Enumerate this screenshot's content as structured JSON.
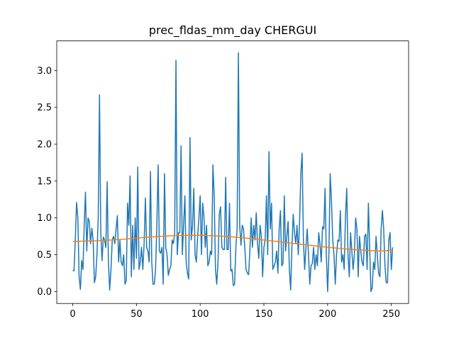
{
  "chart_data": {
    "type": "line",
    "title": "prec_fldas_mm_day CHERGUI",
    "xlim": [
      -12.55,
      263.55
    ],
    "xticks": [
      0,
      50,
      100,
      150,
      200,
      250
    ],
    "ylim": [
      -0.162,
      3.402
    ],
    "yticks": [
      {
        "value": 0,
        "label": "0.0"
      },
      0.5,
      {
        "value": 1,
        "label": "1.0"
      },
      1.5,
      {
        "value": 2,
        "label": "2.0"
      },
      2.5,
      {
        "value": 3,
        "label": "3.0"
      }
    ],
    "series": [
      {
        "color": "#1f77b4",
        "x": [
          0,
          1,
          2,
          3,
          4,
          5,
          6,
          7,
          8,
          9,
          10,
          11,
          12,
          13,
          14,
          15,
          16,
          17,
          18,
          19,
          20,
          21,
          22,
          23,
          24,
          25,
          26,
          27,
          28,
          29,
          30,
          31,
          32,
          33,
          34,
          35,
          36,
          37,
          38,
          39,
          40,
          41,
          42,
          43,
          44,
          45,
          46,
          47,
          48,
          49,
          50,
          51,
          52,
          53,
          54,
          55,
          56,
          57,
          58,
          59,
          60,
          61,
          62,
          63,
          64,
          65,
          66,
          67,
          68,
          69,
          70,
          71,
          72,
          73,
          74,
          75,
          76,
          77,
          78,
          79,
          80,
          81,
          82,
          83,
          84,
          85,
          86,
          87,
          88,
          89,
          90,
          91,
          92,
          93,
          94,
          95,
          96,
          97,
          98,
          99,
          100,
          101,
          102,
          103,
          104,
          105,
          106,
          107,
          108,
          109,
          110,
          111,
          112,
          113,
          114,
          115,
          116,
          117,
          118,
          119,
          120,
          121,
          122,
          123,
          124,
          125,
          126,
          127,
          128,
          129,
          130,
          131,
          132,
          133,
          134,
          135,
          136,
          137,
          138,
          139,
          140,
          141,
          142,
          143,
          144,
          145,
          146,
          147,
          148,
          149,
          150,
          151,
          152,
          153,
          154,
          155,
          156,
          157,
          158,
          159,
          160,
          161,
          162,
          163,
          164,
          165,
          166,
          167,
          168,
          169,
          170,
          171,
          172,
          173,
          174,
          175,
          176,
          177,
          178,
          179,
          180,
          181,
          182,
          183,
          184,
          185,
          186,
          187,
          188,
          189,
          190,
          191,
          192,
          193,
          194,
          195,
          196,
          197,
          198,
          199,
          200,
          201,
          202,
          203,
          204,
          205,
          206,
          207,
          208,
          209,
          210,
          211,
          212,
          213,
          214,
          215,
          216,
          217,
          218,
          219,
          220,
          221,
          222,
          223,
          224,
          225,
          226,
          227,
          228,
          229,
          230,
          231,
          232,
          233,
          234,
          235,
          236,
          237,
          238,
          239,
          240,
          241,
          242,
          243,
          244,
          245,
          246,
          247,
          248,
          249,
          250,
          251
        ],
        "values": [
          0.29,
          0.28,
          0.7,
          1.21,
          1.0,
          0.2,
          0.03,
          0.42,
          0.3,
          0.9,
          1.35,
          0.55,
          1.0,
          0.95,
          0.65,
          0.86,
          0.7,
          0.12,
          0.2,
          0.5,
          1.0,
          2.67,
          0.8,
          0.42,
          0.74,
          0.7,
          0.6,
          1.49,
          0.4,
          0.02,
          0.3,
          0.7,
          0.75,
          0.65,
          0.85,
          1.03,
          0.4,
          0.7,
          0.4,
          0.35,
          0.5,
          0.1,
          0.15,
          1.2,
          0.9,
          1.57,
          0.2,
          0.9,
          0.3,
          1.0,
          0.45,
          1.69,
          0.3,
          0.4,
          0.6,
          0.3,
          0.65,
          1.27,
          0.6,
          0.55,
          0.4,
          1.63,
          0.4,
          0.1,
          0.1,
          0.3,
          0.9,
          1.72,
          0.55,
          0.52,
          0.6,
          0.1,
          1.6,
          0.6,
          0.5,
          0.22,
          0.3,
          0.35,
          0.7,
          0.65,
          0.8,
          3.14,
          0.5,
          0.8,
          0.8,
          1.98,
          0.5,
          0.9,
          1.3,
          0.4,
          0.25,
          0.17,
          2.09,
          0.7,
          0.9,
          1.4,
          0.5,
          0.4,
          0.75,
          1.0,
          1.3,
          0.5,
          1.2,
          1.0,
          0.6,
          0.9,
          0.35,
          0.4,
          0.55,
          0.5,
          1.72,
          1.3,
          0.3,
          0.1,
          0.4,
          1.05,
          1.15,
          0.6,
          0.57,
          0.57,
          1.55,
          0.57,
          0.57,
          1.2,
          0.28,
          0.3,
          0.08,
          0.1,
          0.6,
          0.85,
          3.24,
          0.9,
          0.63,
          0.9,
          0.85,
          0.6,
          0.3,
          0.25,
          0.23,
          0.55,
          1.0,
          0.6,
          0.9,
          0.7,
          1.07,
          0.65,
          0.45,
          0.9,
          0.75,
          0.2,
          0.6,
          0.7,
          1.3,
          0.5,
          1.9,
          0.85,
          1.2,
          0.3,
          0.35,
          0.4,
          0.55,
          0.25,
          0.85,
          1.1,
          0.35,
          0.38,
          1.3,
          0.55,
          0.75,
          0.95,
          0.3,
          0.02,
          0.6,
          1.05,
          0.8,
          0.65,
          0.9,
          0.5,
          0.95,
          1.6,
          1.88,
          0.7,
          0.3,
          0.6,
          0.85,
          0.5,
          0.1,
          0.35,
          0.38,
          0.6,
          0.3,
          0.5,
          0.35,
          0.8,
          0.65,
          0.4,
          0.88,
          0.85,
          1.4,
          0.5,
          0.0,
          0.5,
          1.6,
          1.25,
          0.7,
          0.5,
          0.1,
          0.5,
          0.7,
          0.68,
          1.1,
          0.4,
          0.5,
          0.3,
          1.0,
          1.4,
          0.5,
          0.2,
          0.8,
          0.55,
          0.3,
          0.5,
          1.0,
          0.85,
          0.2,
          0.75,
          0.55,
          0.4,
          0.35,
          0.75,
          0.78,
          0.3,
          1.2,
          0.6,
          0.0,
          0.05,
          0.4,
          0.3,
          0.75,
          0.5,
          0.25,
          0.2,
          0.85,
          1.1,
          0.85,
          0.35,
          0.12,
          0.12,
          0.7,
          0.8,
          0.3,
          0.6
        ]
      },
      {
        "color": "#ff7f0e",
        "x": [
          0,
          20,
          40,
          60,
          80,
          100,
          120,
          140,
          160,
          180,
          200,
          220,
          240,
          251
        ],
        "values": [
          0.68,
          0.69,
          0.71,
          0.74,
          0.76,
          0.765,
          0.75,
          0.72,
          0.68,
          0.64,
          0.6,
          0.57,
          0.55,
          0.56
        ]
      }
    ]
  }
}
